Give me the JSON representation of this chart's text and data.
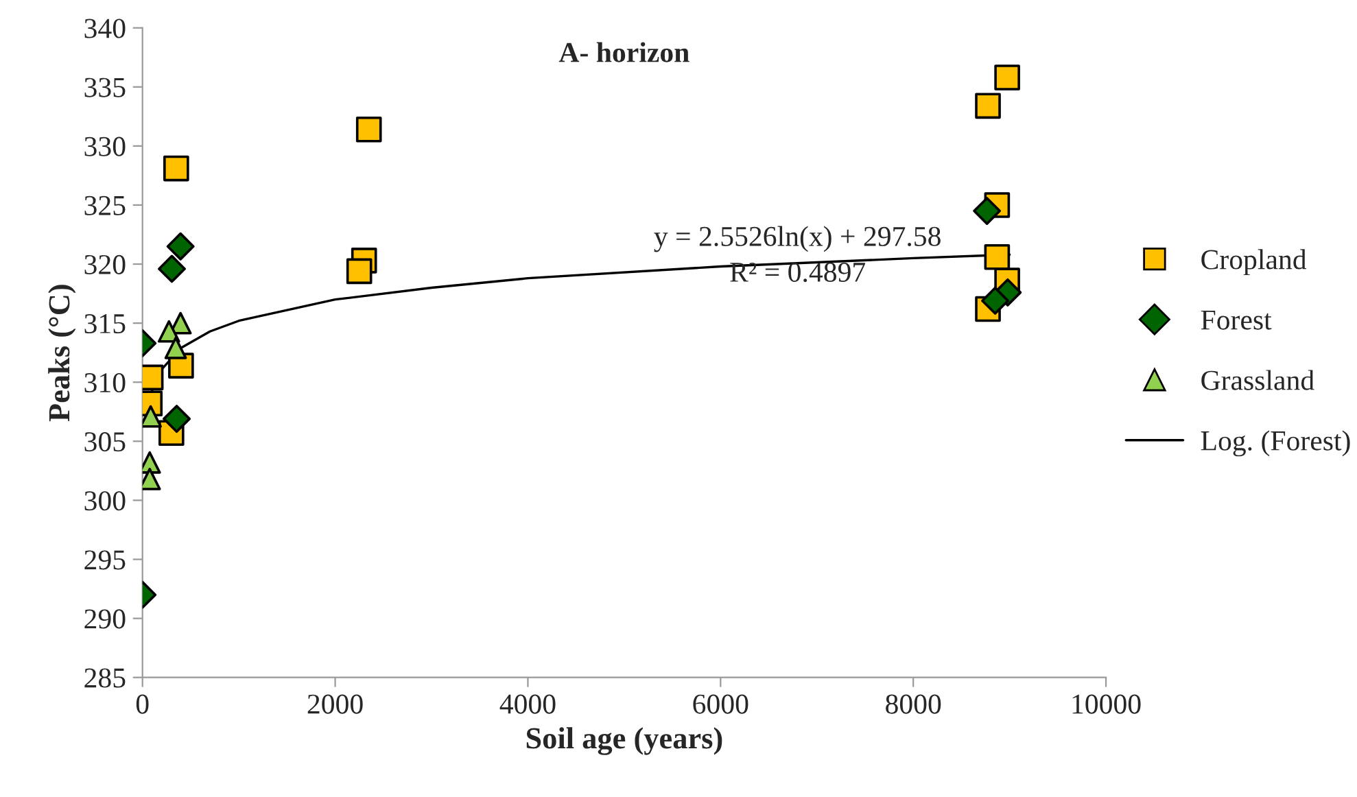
{
  "chart_data": {
    "type": "scatter",
    "title": "A- horizon",
    "xlabel": "Soil age (years)",
    "ylabel": "Peaks (°C)",
    "xlim": [
      0,
      10000
    ],
    "xticks": [
      0,
      2000,
      4000,
      6000,
      8000,
      10000
    ],
    "ylim": [
      285,
      340
    ],
    "yticks": [
      285,
      290,
      295,
      300,
      305,
      310,
      315,
      320,
      325,
      330,
      335,
      340
    ],
    "grid": false,
    "legend": "right",
    "annotations": [
      "y = 2.5526ln(x) + 297.58",
      "R² = 0.4897"
    ],
    "series": [
      {
        "name": "Cropland",
        "color": "#ffc000",
        "marker": "square",
        "x": [
          350,
          85,
          75,
          400,
          300,
          2350,
          2300,
          2250,
          8975,
          8775,
          8870,
          8870,
          8975,
          8775
        ],
        "values": [
          328.1,
          310.4,
          308.2,
          311.4,
          305.7,
          331.4,
          320.3,
          319.4,
          335.8,
          333.4,
          325.0,
          320.6,
          318.6,
          316.2
        ]
      },
      {
        "name": "Forest",
        "color": "#006400",
        "marker": "diamond",
        "x": [
          8765,
          8980,
          8850,
          395,
          305,
          0,
          355,
          0
        ],
        "values": [
          324.5,
          317.6,
          316.9,
          321.5,
          319.6,
          313.3,
          306.9,
          292.0
        ]
      },
      {
        "name": "Grassland",
        "color": "#92d050",
        "marker": "triangle",
        "x": [
          395,
          275,
          345,
          85,
          75,
          75
        ],
        "values": [
          315.0,
          314.3,
          312.9,
          307.1,
          303.2,
          301.8
        ]
      },
      {
        "name": "Log. (Forest)",
        "type": "line",
        "color": "#000000",
        "marker": "none",
        "line_style": "solid",
        "x": [
          70,
          100,
          200,
          400,
          700,
          1000,
          2000,
          3000,
          4000,
          6000,
          8000,
          9000
        ],
        "values": [
          308.4,
          309.3,
          311.1,
          312.9,
          314.3,
          315.2,
          317.0,
          318.0,
          318.8,
          319.8,
          320.5,
          320.8
        ]
      }
    ]
  }
}
